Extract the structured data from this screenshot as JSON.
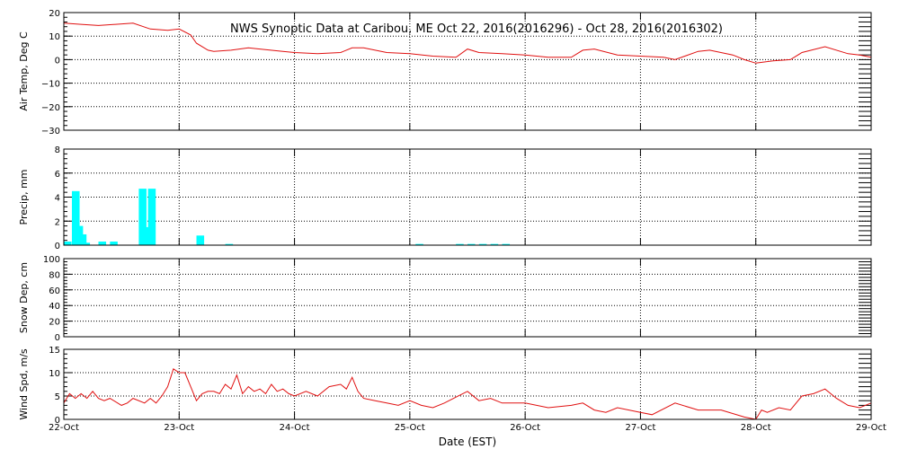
{
  "title": "NWS Synoptic Data at Caribou, ME   Oct 22, 2016(2016296) - Oct 28, 2016(2016302)",
  "xlabel": "Date (EST)",
  "x_ticks": [
    "22-Oct",
    "23-Oct",
    "24-Oct",
    "25-Oct",
    "26-Oct",
    "27-Oct",
    "28-Oct",
    "29-Oct"
  ],
  "colors": {
    "line": "#e01010",
    "bar": "#00ffff",
    "grid": "#000000"
  },
  "chart_data": [
    {
      "type": "line",
      "ylabel": "Air Temp, Deg C",
      "ylim": [
        -30,
        20
      ],
      "yticks": [
        "20",
        "10",
        "0",
        "−10",
        "−20",
        "−30"
      ],
      "ytick_values": [
        20,
        10,
        0,
        -10,
        -20,
        -30
      ],
      "x_unit": "days since 22-Oct 00:00 EST",
      "series": [
        {
          "name": "Air Temp",
          "x": [
            0,
            0.15,
            0.3,
            0.45,
            0.6,
            0.75,
            0.9,
            1.0,
            1.1,
            1.15,
            1.25,
            1.3,
            1.45,
            1.6,
            1.7,
            1.9,
            2.0,
            2.2,
            2.4,
            2.5,
            2.6,
            2.8,
            3.0,
            3.2,
            3.4,
            3.5,
            3.6,
            3.8,
            4.0,
            4.2,
            4.4,
            4.5,
            4.6,
            4.8,
            5.0,
            5.2,
            5.3,
            5.5,
            5.6,
            5.8,
            5.9,
            6.0,
            6.15,
            6.3,
            6.4,
            6.6,
            6.8,
            6.9,
            7.0
          ],
          "y": [
            15.5,
            15,
            14.5,
            15,
            15.5,
            13,
            12.5,
            13,
            10.5,
            7,
            4,
            3.5,
            4,
            5,
            4.5,
            3.5,
            3,
            2.5,
            3,
            5,
            5,
            3,
            2.5,
            1.5,
            1,
            4.5,
            3,
            2.5,
            2,
            1,
            1,
            4,
            4.5,
            2,
            1.5,
            1,
            0,
            3.5,
            4,
            2,
            0,
            -1.5,
            -0.5,
            0,
            3,
            5.5,
            2.5,
            2,
            1
          ]
        }
      ]
    },
    {
      "type": "bar",
      "ylabel": "Precip, mm",
      "ylim": [
        0,
        8
      ],
      "yticks": [
        "8",
        "6",
        "4",
        "2",
        "0"
      ],
      "ytick_values": [
        8,
        6,
        4,
        2,
        0
      ],
      "x_unit": "days since 22-Oct 00:00 EST",
      "series": [
        {
          "name": "Precip",
          "x": [
            0.0,
            0.07,
            0.1,
            0.13,
            0.16,
            0.3,
            0.4,
            0.65,
            0.7,
            0.73,
            1.15,
            1.4,
            3.05,
            3.4,
            3.5,
            3.6,
            3.7,
            3.8
          ],
          "values": [
            0.3,
            4.5,
            1.6,
            0.9,
            0.2,
            0.3,
            0.3,
            4.7,
            1.5,
            4.7,
            0.8,
            0.1,
            0.1,
            0.1,
            0.1,
            0.1,
            0.1,
            0.1
          ]
        }
      ]
    },
    {
      "type": "line",
      "ylabel": "Snow Dep, cm",
      "ylim": [
        0,
        100
      ],
      "yticks": [
        "100",
        "80",
        "60",
        "40",
        "20",
        "0"
      ],
      "ytick_values": [
        100,
        80,
        60,
        40,
        20,
        0
      ],
      "series": []
    },
    {
      "type": "line",
      "ylabel": "Wind Spd, m/s",
      "ylim": [
        0,
        15
      ],
      "yticks": [
        "15",
        "10",
        "5",
        "0"
      ],
      "ytick_values": [
        15,
        10,
        5,
        0
      ],
      "x_unit": "days since 22-Oct 00:00 EST",
      "series": [
        {
          "name": "Wind Spd",
          "x": [
            0,
            0.05,
            0.1,
            0.15,
            0.2,
            0.25,
            0.3,
            0.35,
            0.4,
            0.5,
            0.55,
            0.6,
            0.7,
            0.75,
            0.8,
            0.85,
            0.9,
            0.95,
            1.0,
            1.05,
            1.1,
            1.15,
            1.2,
            1.25,
            1.3,
            1.35,
            1.4,
            1.45,
            1.5,
            1.55,
            1.6,
            1.65,
            1.7,
            1.75,
            1.8,
            1.85,
            1.9,
            1.95,
            2.0,
            2.1,
            2.2,
            2.3,
            2.4,
            2.45,
            2.5,
            2.55,
            2.6,
            2.7,
            2.8,
            2.9,
            3.0,
            3.1,
            3.2,
            3.3,
            3.5,
            3.6,
            3.7,
            3.8,
            4.0,
            4.2,
            4.4,
            4.5,
            4.6,
            4.7,
            4.8,
            5.0,
            5.1,
            5.3,
            5.5,
            5.7,
            5.9,
            6.0,
            6.05,
            6.1,
            6.2,
            6.3,
            6.4,
            6.5,
            6.6,
            6.7,
            6.8,
            6.9,
            7.0
          ],
          "y": [
            3.5,
            5.5,
            4.5,
            5.5,
            4.5,
            6,
            4.5,
            4,
            4.5,
            3,
            3.5,
            4.5,
            3.5,
            4.5,
            3.5,
            5,
            7,
            10.8,
            10,
            10,
            7,
            4,
            5.5,
            6,
            6,
            5.5,
            7.5,
            6.5,
            9.5,
            5.5,
            7,
            6,
            6.5,
            5.5,
            7.5,
            6,
            6.5,
            5.5,
            5,
            6,
            5,
            7,
            7.5,
            6.5,
            9,
            6,
            4.5,
            4,
            3.5,
            3,
            4,
            3,
            2.5,
            3.5,
            6,
            4,
            4.5,
            3.5,
            3.5,
            2.5,
            3,
            3.5,
            2,
            1.5,
            2.5,
            1.5,
            1,
            3.5,
            2,
            2,
            0.5,
            0,
            2,
            1.5,
            2.5,
            2,
            5,
            5.5,
            6.5,
            4.5,
            3,
            2.5,
            3.5
          ]
        }
      ]
    }
  ]
}
